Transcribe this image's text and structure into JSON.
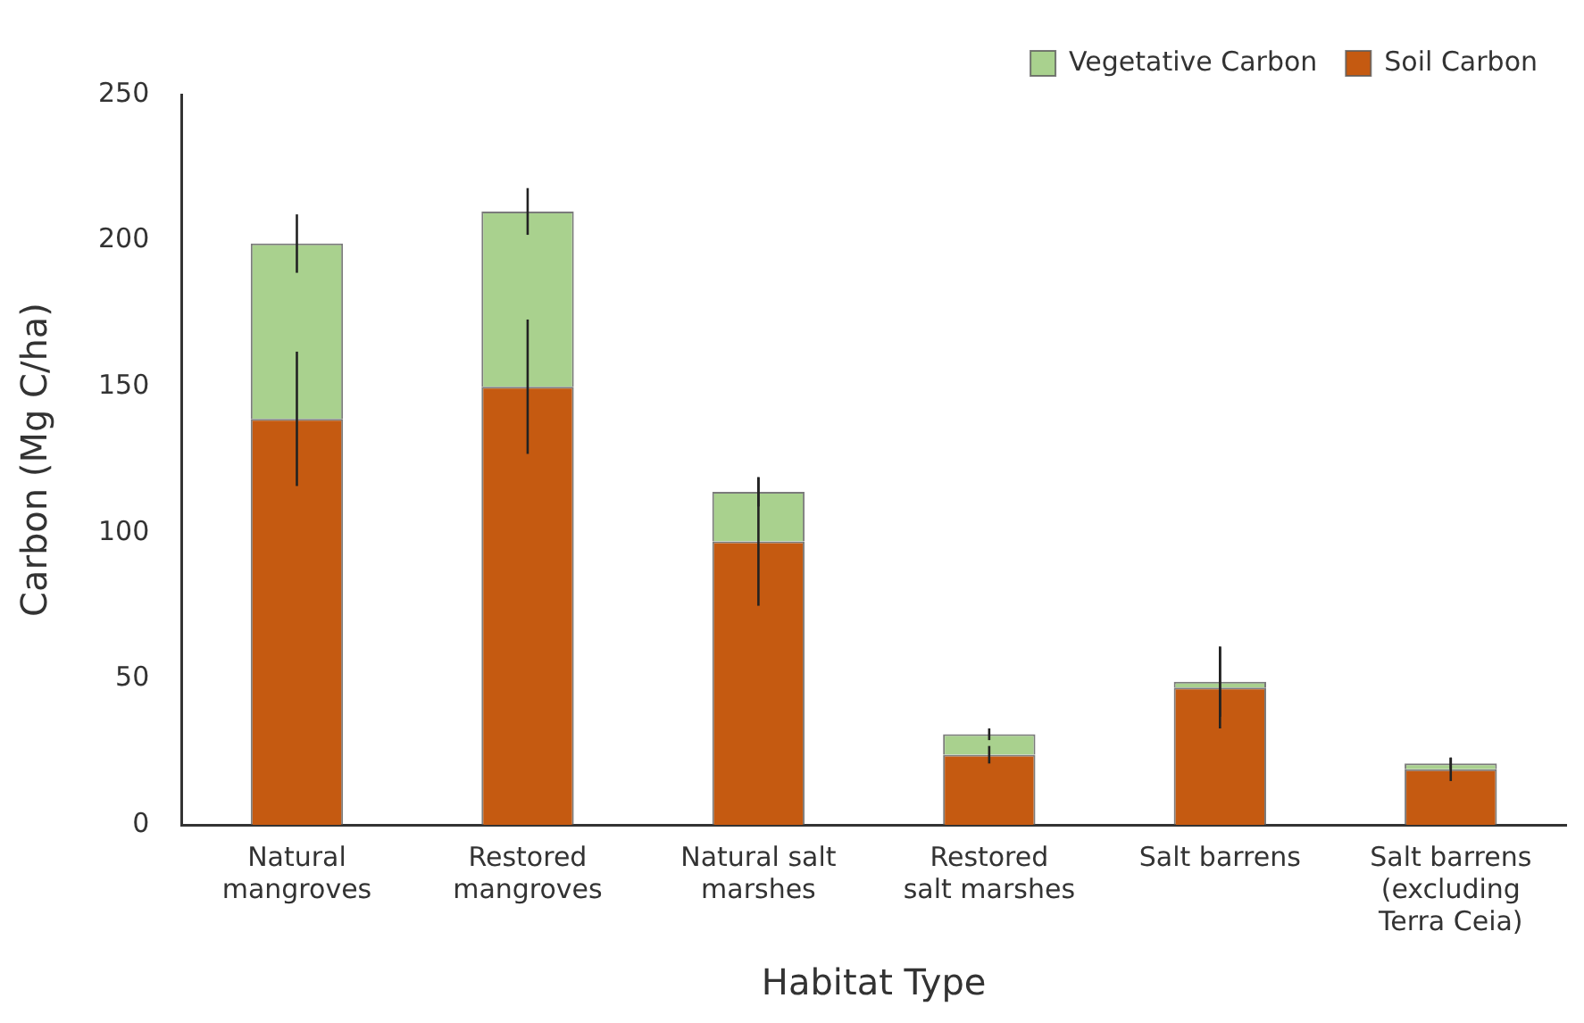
{
  "chart_data": {
    "type": "bar",
    "stacked": true,
    "xlabel": "Habitat Type",
    "ylabel": "Carbon (Mg C/ha)",
    "categories": [
      "Natural mangroves",
      "Restored mangroves",
      "Natural salt marshes",
      "Restored salt marshes",
      "Salt barrens",
      "Salt barrens (excluding Terra Ceia)"
    ],
    "series": [
      {
        "name": "Soil Carbon",
        "color": "#c55a11",
        "values": [
          139,
          150,
          97,
          24,
          47,
          19
        ],
        "errors": [
          23,
          23,
          22,
          3,
          14,
          4
        ]
      },
      {
        "name": "Vegetative Carbon",
        "color": "#a9d18e",
        "values": [
          60,
          60,
          17,
          7,
          2,
          2
        ],
        "errors": [
          10,
          8,
          5,
          2,
          12,
          2
        ]
      }
    ],
    "ylim": [
      0,
      250
    ],
    "yticks": [
      0,
      50,
      100,
      150,
      200,
      250
    ],
    "grid": false,
    "legend": "top right"
  }
}
